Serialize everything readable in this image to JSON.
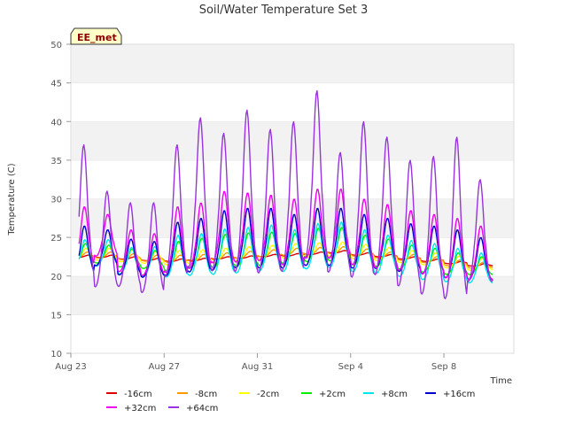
{
  "chart_data": {
    "type": "line",
    "title": "Soil/Water Temperature Set 3",
    "station_label": "EE_met",
    "xlabel": "Time",
    "ylabel": "Temperature (C)",
    "ylim": [
      10,
      50
    ],
    "yticks": [
      10,
      15,
      20,
      25,
      30,
      35,
      40,
      45,
      50
    ],
    "xlim": [
      "2023-08-23",
      "2023-09-11"
    ],
    "xticks": [
      "Aug 23",
      "Aug 27",
      "Aug 31",
      "Sep 4",
      "Sep 8"
    ],
    "grid": "horizontal bands",
    "legend_position": "bottom",
    "days": [
      "Aug 23",
      "Aug 24",
      "Aug 25",
      "Aug 26",
      "Aug 27",
      "Aug 28",
      "Aug 29",
      "Aug 30",
      "Aug 31",
      "Sep 1",
      "Sep 2",
      "Sep 3",
      "Sep 4",
      "Sep 5",
      "Sep 6",
      "Sep 7",
      "Sep 8",
      "Sep 9"
    ],
    "series": [
      {
        "name": "-16cm",
        "color": "#dd0000",
        "mean": [
          22.5,
          22.5,
          22.3,
          22.1,
          22.0,
          22.1,
          22.3,
          22.4,
          22.6,
          22.7,
          22.9,
          23.1,
          22.8,
          22.6,
          22.3,
          22.0,
          21.7,
          21.4
        ],
        "amp": [
          0.2,
          0.2,
          0.2,
          0.2,
          0.2,
          0.2,
          0.2,
          0.2,
          0.2,
          0.2,
          0.2,
          0.2,
          0.2,
          0.2,
          0.2,
          0.2,
          0.2,
          0.2
        ],
        "phase": 0.75
      },
      {
        "name": "-8cm",
        "color": "#ff9900",
        "mean": [
          22.6,
          22.6,
          22.4,
          22.2,
          22.1,
          22.2,
          22.4,
          22.6,
          22.8,
          23.0,
          23.1,
          23.2,
          22.9,
          22.6,
          22.3,
          22.0,
          21.6,
          21.3
        ],
        "amp": [
          0.5,
          0.5,
          0.5,
          0.5,
          0.6,
          0.6,
          0.6,
          0.6,
          0.6,
          0.6,
          0.6,
          0.6,
          0.6,
          0.5,
          0.5,
          0.5,
          0.5,
          0.5
        ],
        "phase": 0.7
      },
      {
        "name": "-2cm",
        "color": "#ffff00",
        "mean": [
          22.6,
          22.6,
          22.4,
          22.2,
          22.1,
          22.2,
          22.4,
          22.6,
          22.8,
          23.0,
          23.1,
          23.2,
          22.9,
          22.6,
          22.3,
          22.0,
          21.6,
          21.3
        ],
        "amp": [
          1.0,
          1.0,
          1.0,
          1.0,
          1.2,
          1.2,
          1.2,
          1.2,
          1.2,
          1.2,
          1.2,
          1.2,
          1.2,
          1.1,
          1.0,
          1.0,
          1.0,
          1.0
        ],
        "phase": 0.65
      },
      {
        "name": "+2cm",
        "color": "#00ee00",
        "mean": [
          22.4,
          22.5,
          22.0,
          21.8,
          22.0,
          22.4,
          22.6,
          22.8,
          22.9,
          23.0,
          23.4,
          23.5,
          22.8,
          22.5,
          22.0,
          21.6,
          21.2,
          21.0
        ],
        "amp": [
          1.8,
          1.5,
          1.5,
          1.5,
          2.5,
          2.5,
          2.8,
          2.8,
          2.8,
          2.5,
          2.8,
          2.8,
          2.5,
          2.3,
          2.0,
          2.0,
          1.8,
          1.5
        ],
        "phase": 0.62
      },
      {
        "name": "+8cm",
        "color": "#00e5ee",
        "mean": [
          22.2,
          22.5,
          21.5,
          21.3,
          21.8,
          22.0,
          22.3,
          22.5,
          22.8,
          22.5,
          23.0,
          23.2,
          22.5,
          22.1,
          21.6,
          21.2,
          20.8,
          20.5
        ],
        "amp": [
          2.5,
          2.2,
          2.2,
          2.5,
          3.5,
          3.5,
          3.8,
          3.8,
          3.8,
          3.5,
          3.8,
          3.8,
          3.5,
          3.2,
          3.0,
          3.0,
          2.8,
          2.5
        ],
        "phase": 0.6
      },
      {
        "name": "+16cm",
        "color": "#0000cc",
        "mean": [
          22.5,
          23.0,
          21.8,
          21.5,
          22.5,
          23.0,
          23.5,
          23.8,
          23.8,
          23.5,
          24.0,
          24.0,
          23.5,
          23.3,
          22.8,
          22.5,
          22.0,
          21.5
        ],
        "amp": [
          4.0,
          3.0,
          3.0,
          3.0,
          4.5,
          4.5,
          5.0,
          5.0,
          5.0,
          4.5,
          4.8,
          4.8,
          4.5,
          4.2,
          4.0,
          4.0,
          4.0,
          3.5
        ],
        "phase": 0.58
      },
      {
        "name": "+32cm",
        "color": "#ee00ee",
        "mean": [
          24.0,
          24.5,
          22.5,
          22.0,
          23.5,
          24.0,
          25.0,
          25.0,
          25.0,
          24.5,
          25.5,
          25.5,
          24.5,
          24.0,
          23.5,
          23.0,
          22.5,
          22.0
        ],
        "amp": [
          5.0,
          3.5,
          3.5,
          3.5,
          5.5,
          5.5,
          6.0,
          5.8,
          5.5,
          5.5,
          5.8,
          5.8,
          5.5,
          5.3,
          5.0,
          5.0,
          5.0,
          4.5
        ],
        "phase": 0.58
      },
      {
        "name": "+64cm",
        "color": "#9933dd",
        "mean": [
          26.0,
          23.0,
          22.5,
          22.0,
          26.0,
          28.0,
          27.0,
          28.0,
          27.0,
          27.5,
          30.0,
          26.0,
          27.0,
          26.5,
          24.5,
          24.0,
          24.5,
          24.0
        ],
        "amp": [
          11.0,
          8.0,
          7.0,
          7.5,
          11.0,
          12.5,
          11.5,
          13.5,
          12.0,
          12.5,
          14.0,
          10.0,
          13.0,
          11.5,
          10.5,
          11.5,
          13.5,
          8.5
        ],
        "phase": 0.55
      }
    ]
  }
}
